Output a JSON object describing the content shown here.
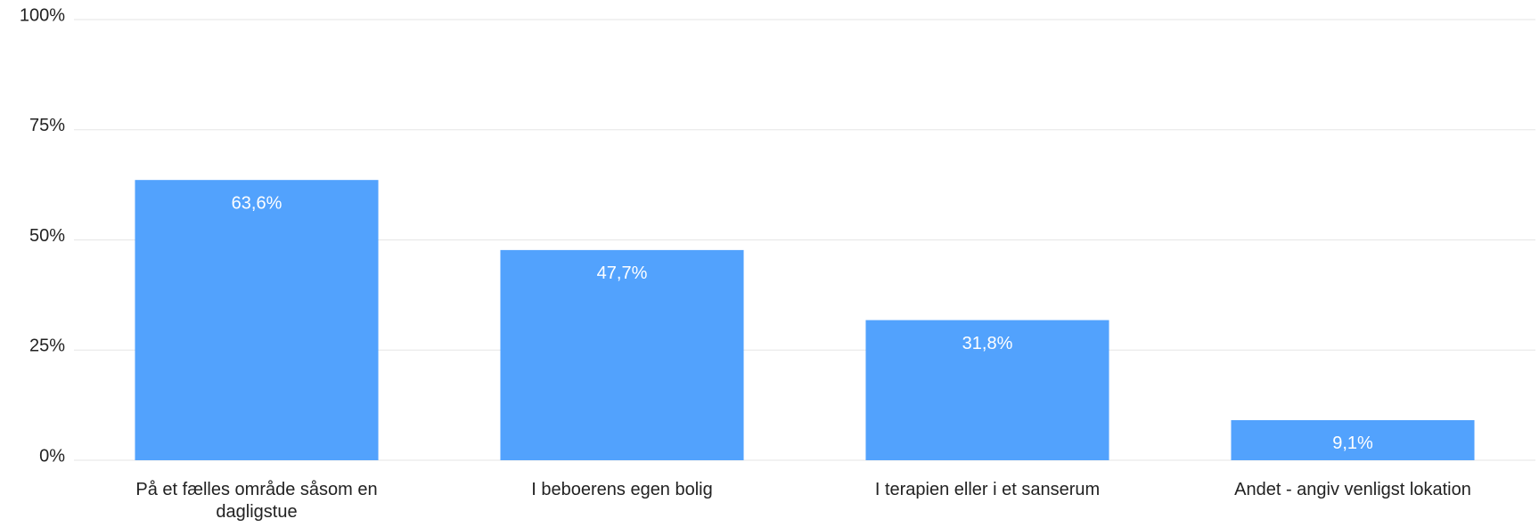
{
  "chart_data": {
    "type": "bar",
    "categories": [
      "På et fælles område såsom en dagligstue",
      "I beboerens egen bolig",
      "I terapien eller i et sanserum",
      "Andet - angiv venligst lokation"
    ],
    "values": [
      63.6,
      47.7,
      31.8,
      9.1
    ],
    "value_labels": [
      "63,6%",
      "47,7%",
      "31,8%",
      "9,1%"
    ],
    "color": "#52a2fd",
    "ylim": [
      0,
      100
    ],
    "yticks": [
      {
        "value": 0,
        "label": "0%"
      },
      {
        "value": 25,
        "label": "25%"
      },
      {
        "value": 50,
        "label": "50%"
      },
      {
        "value": 75,
        "label": "75%"
      },
      {
        "value": 100,
        "label": "100%"
      }
    ],
    "grid": true
  }
}
